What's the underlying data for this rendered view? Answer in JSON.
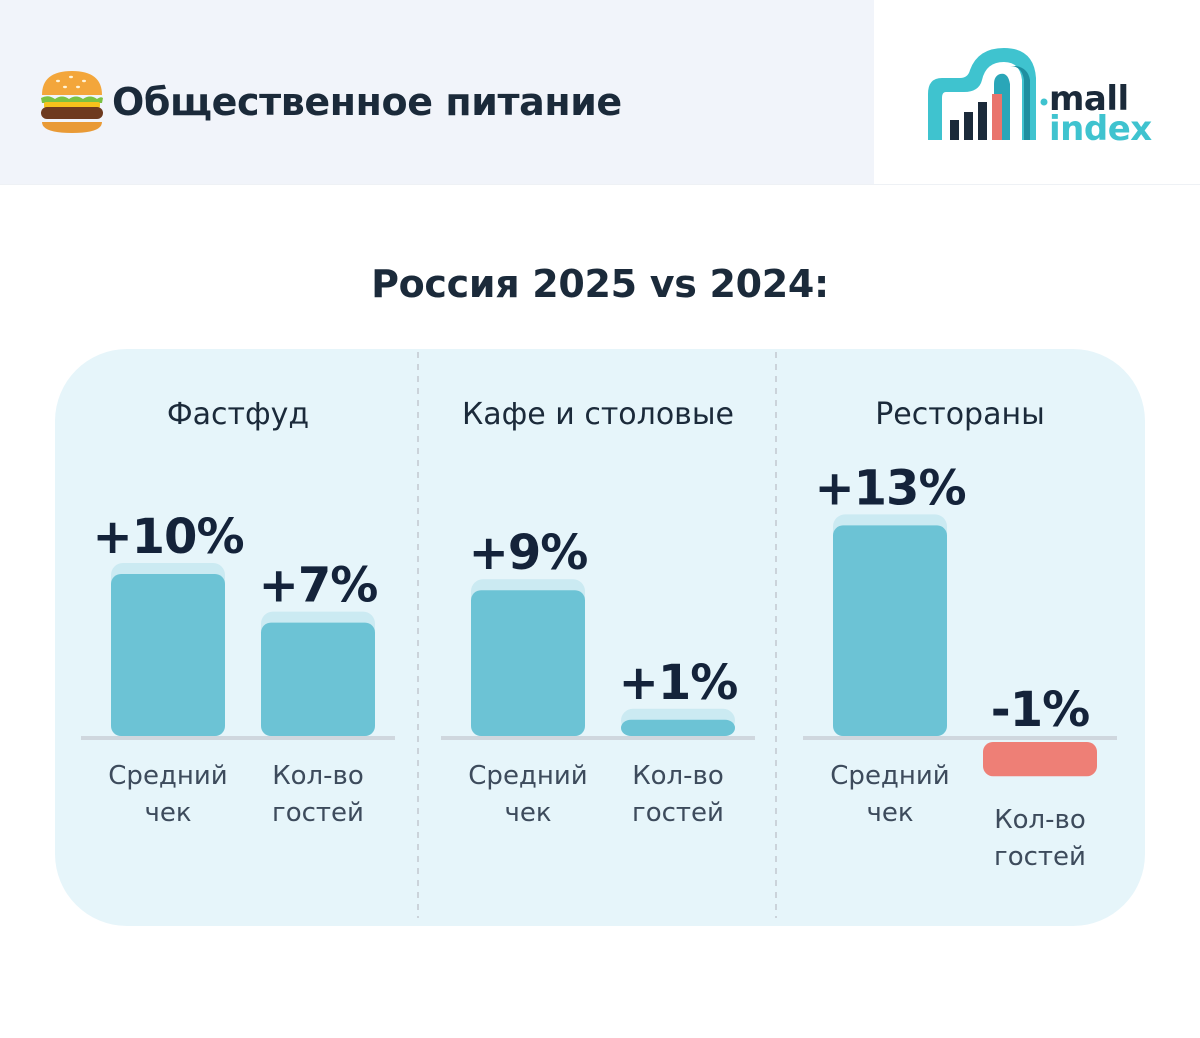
{
  "header": {
    "title": "Общественное питание",
    "burger_icon": "burger-icon"
  },
  "logo": {
    "line1": "mall",
    "line2": "index",
    "colors": {
      "teal": "#3fc3cf",
      "dark": "#1b2a3a",
      "red": "#e9746c"
    }
  },
  "chart_data": {
    "type": "bar",
    "title": "Россия 2025 vs 2024:",
    "unit": "%",
    "colors": {
      "positive": "#6cc3d5",
      "negative": "#ee7f76",
      "shadow": "#cbeaf2",
      "axis": "#cfd7de"
    },
    "groups": [
      {
        "name": "Фастфуд",
        "bars": [
          {
            "label": [
              "Средний",
              "чек"
            ],
            "value": 10,
            "text": "+10%"
          },
          {
            "label": [
              "Кол-во",
              "гостей"
            ],
            "value": 7,
            "text": "+7%"
          }
        ]
      },
      {
        "name": "Кафе и столовые",
        "bars": [
          {
            "label": [
              "Средний",
              "чек"
            ],
            "value": 9,
            "text": "+9%"
          },
          {
            "label": [
              "Кол-во",
              "гостей"
            ],
            "value": 1,
            "text": "+1%"
          }
        ]
      },
      {
        "name": "Рестораны",
        "bars": [
          {
            "label": [
              "Средний",
              "чек"
            ],
            "value": 13,
            "text": "+13%"
          },
          {
            "label": [
              "Кол-во",
              "гостей"
            ],
            "value": -1,
            "text": "-1%"
          }
        ]
      }
    ]
  }
}
